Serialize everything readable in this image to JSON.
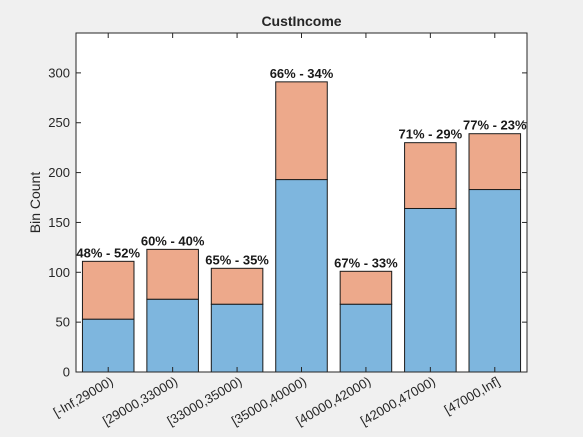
{
  "chart_data": {
    "type": "bar",
    "stacked": true,
    "title": "CustIncome",
    "xlabel": "",
    "ylabel": "Bin Count",
    "ylim": [
      0,
      340
    ],
    "yticks": [
      0,
      50,
      100,
      150,
      200,
      250,
      300
    ],
    "grid": false,
    "categories": [
      "[-Inf,29000)",
      "[29000,33000)",
      "[33000,35000)",
      "[35000,40000)",
      "[40000,42000)",
      "[42000,47000)",
      "[47000,Inf]"
    ],
    "series": [
      {
        "color": "#7eb6de",
        "values": [
          53,
          73,
          68,
          193,
          68,
          164,
          183
        ]
      },
      {
        "color": "#eda98b",
        "values": [
          58,
          50,
          36,
          98,
          33,
          66,
          56
        ]
      }
    ],
    "data_labels": [
      "48% - 52%",
      "60% - 40%",
      "65% - 35%",
      "66% - 34%",
      "67% - 33%",
      "71% - 29%",
      "77% - 23%"
    ]
  }
}
